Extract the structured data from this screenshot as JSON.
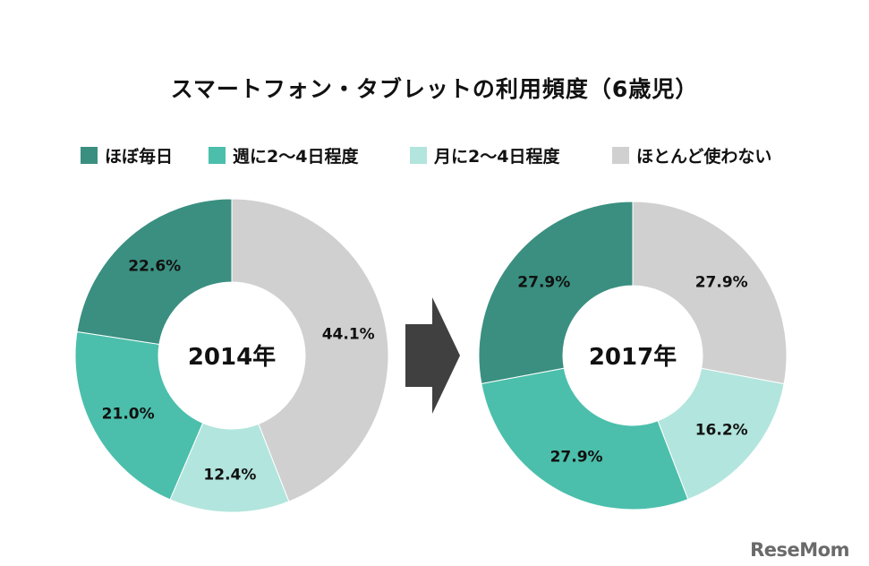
{
  "title": "スマートフォン・タブレットの利用頻度（6歳児）",
  "colors": {
    "daily": "#3a8f80",
    "weekly": "#4bbfab",
    "monthly": "#b2e5dd",
    "rarely": "#d0d0d0",
    "arrow": "#404040"
  },
  "chart_data": [
    {
      "type": "donut",
      "center_label": "2014年",
      "title": "スマートフォン・タブレットの利用頻度（6歳児）",
      "categories": [
        "ほぼ毎日",
        "週に2～4日程度",
        "月に2～4日程度",
        "ほとんど使わない"
      ],
      "values": [
        22.6,
        21.0,
        12.4,
        44.1
      ],
      "labels": [
        "22.6%",
        "21.0%",
        "12.4%",
        "44.1%"
      ]
    },
    {
      "type": "donut",
      "center_label": "2017年",
      "title": "スマートフォン・タブレットの利用頻度（6歳児）",
      "categories": [
        "ほぼ毎日",
        "週に2～4日程度",
        "月に2～4日程度",
        "ほとんど使わない"
      ],
      "values": [
        27.9,
        27.9,
        16.2,
        27.9
      ],
      "labels": [
        "27.9%",
        "27.9%",
        "16.2%",
        "27.9%"
      ]
    }
  ],
  "legend": [
    {
      "label": "ほぼ毎日",
      "color": "#3a8f80"
    },
    {
      "label": "週に2～4日程度",
      "color": "#4bbfab"
    },
    {
      "label": "月に2～4日程度",
      "color": "#b2e5dd"
    },
    {
      "label": "ほとんど使わない",
      "color": "#d0d0d0"
    }
  ],
  "brand": "ReseMom"
}
